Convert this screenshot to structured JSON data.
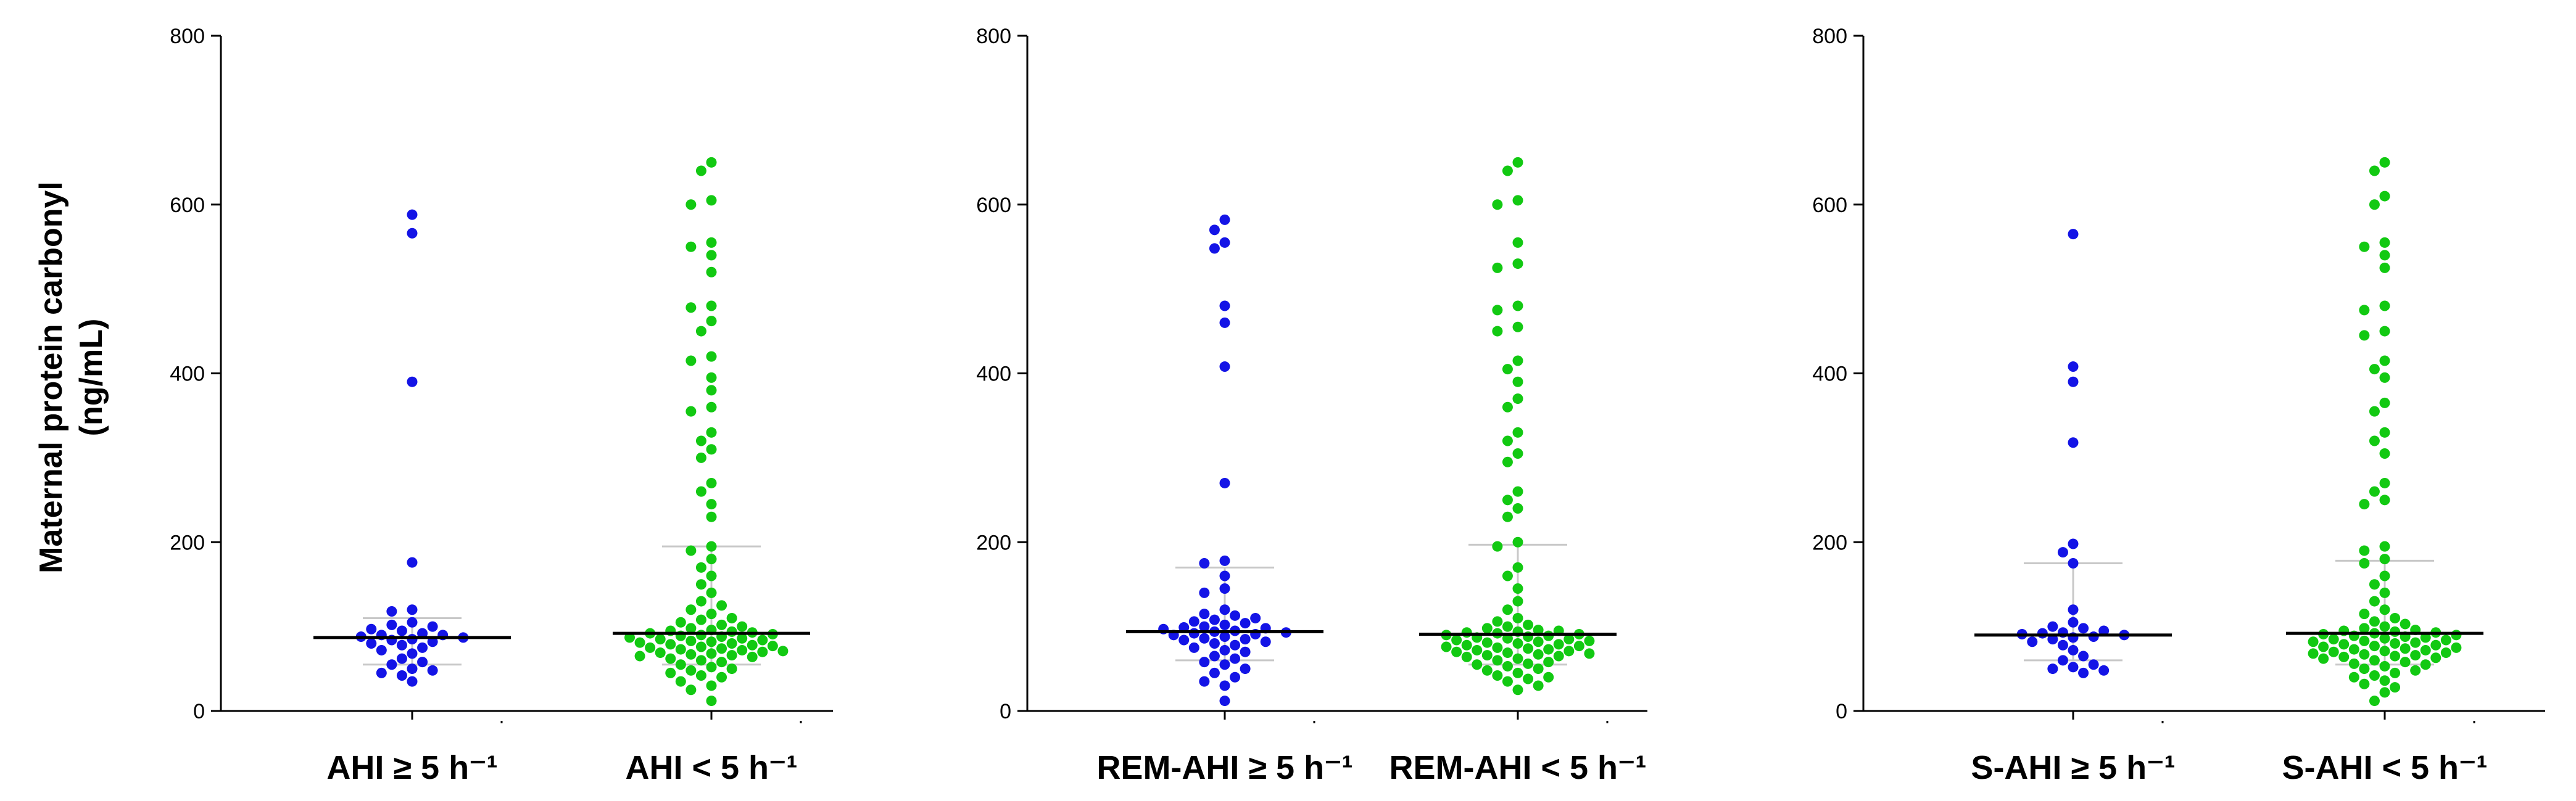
{
  "figure": {
    "ylabel_line1": "Maternal protein carbonyl",
    "ylabel_line2": "(ng/mL)"
  },
  "colors": {
    "group1": "#1414e6",
    "group2": "#12c912",
    "median": "#000000",
    "iqr": "#c8c8c8",
    "axis": "#000000"
  },
  "chart_data": [
    {
      "type": "scatter",
      "subtype": "dot-plot",
      "ylim": [
        0,
        800
      ],
      "yticks": [
        0,
        200,
        400,
        600,
        800
      ],
      "categories": [
        "AHI ≥ 5 h⁻¹",
        "AHI < 5 h⁻¹"
      ],
      "series": [
        {
          "category": "AHI ≥ 5 h⁻¹",
          "median": 87,
          "whisker": [
            55,
            110
          ],
          "values": [
            588,
            566,
            390,
            176,
            120,
            118,
            105,
            102,
            100,
            97,
            95,
            92,
            90,
            90,
            88,
            87,
            85,
            84,
            82,
            80,
            78,
            75,
            72,
            68,
            62,
            58,
            55,
            50,
            48,
            45,
            42,
            35
          ]
        },
        {
          "category": "AHI < 5 h⁻¹",
          "median": 92,
          "whisker": [
            55,
            195
          ],
          "values": [
            650,
            640,
            605,
            600,
            555,
            550,
            540,
            520,
            480,
            478,
            462,
            450,
            420,
            415,
            395,
            380,
            360,
            355,
            330,
            320,
            310,
            300,
            270,
            260,
            245,
            230,
            195,
            190,
            180,
            170,
            160,
            150,
            140,
            130,
            125,
            120,
            115,
            110,
            108,
            105,
            102,
            100,
            98,
            96,
            95,
            94,
            93,
            92,
            91,
            90,
            89,
            88,
            87,
            86,
            85,
            84,
            83,
            82,
            81,
            80,
            79,
            78,
            77,
            76,
            75,
            74,
            73,
            72,
            71,
            70,
            69,
            68,
            67,
            66,
            65,
            64,
            62,
            60,
            58,
            55,
            52,
            50,
            48,
            45,
            42,
            40,
            35,
            30,
            25,
            12
          ]
        }
      ]
    },
    {
      "type": "scatter",
      "subtype": "dot-plot",
      "ylim": [
        0,
        800
      ],
      "yticks": [
        0,
        200,
        400,
        600,
        800
      ],
      "categories": [
        "REM-AHI ≥ 5 h⁻¹",
        "REM-AHI < 5 h⁻¹"
      ],
      "series": [
        {
          "category": "REM-AHI ≥ 5 h⁻¹",
          "median": 94,
          "whisker": [
            60,
            170
          ],
          "values": [
            582,
            570,
            555,
            548,
            480,
            460,
            408,
            270,
            178,
            175,
            160,
            145,
            140,
            120,
            115,
            113,
            110,
            108,
            106,
            104,
            102,
            100,
            99,
            98,
            97,
            95,
            94,
            93,
            92,
            91,
            90,
            88,
            86,
            85,
            84,
            82,
            80,
            78,
            75,
            72,
            70,
            65,
            62,
            58,
            55,
            50,
            45,
            40,
            35,
            30,
            12
          ]
        },
        {
          "category": "REM-AHI < 5 h⁻¹",
          "median": 91,
          "whisker": [
            55,
            197
          ],
          "values": [
            650,
            640,
            605,
            600,
            555,
            530,
            525,
            480,
            475,
            455,
            450,
            415,
            405,
            390,
            370,
            360,
            330,
            320,
            305,
            295,
            260,
            250,
            240,
            230,
            200,
            195,
            170,
            160,
            145,
            130,
            120,
            110,
            106,
            102,
            100,
            98,
            96,
            95,
            94,
            93,
            92,
            91,
            90,
            89,
            88,
            87,
            86,
            85,
            84,
            83,
            82,
            81,
            80,
            79,
            78,
            77,
            76,
            75,
            74,
            73,
            72,
            71,
            70,
            69,
            68,
            67,
            66,
            65,
            64,
            62,
            60,
            58,
            56,
            55,
            53,
            50,
            48,
            45,
            42,
            40,
            38,
            35,
            30,
            25
          ]
        }
      ]
    },
    {
      "type": "scatter",
      "subtype": "dot-plot",
      "ylim": [
        0,
        800
      ],
      "yticks": [
        0,
        200,
        400,
        600,
        800
      ],
      "categories": [
        "S-AHI ≥ 5 h⁻¹",
        "S-AHI < 5 h⁻¹"
      ],
      "series": [
        {
          "category": "S-AHI ≥ 5 h⁻¹",
          "median": 90,
          "whisker": [
            60,
            175
          ],
          "values": [
            565,
            408,
            390,
            318,
            198,
            188,
            175,
            120,
            105,
            100,
            98,
            95,
            93,
            92,
            91,
            90,
            88,
            87,
            85,
            82,
            78,
            72,
            65,
            60,
            55,
            52,
            50,
            48,
            45
          ]
        },
        {
          "category": "S-AHI < 5 h⁻¹",
          "median": 92,
          "whisker": [
            55,
            178
          ],
          "values": [
            650,
            640,
            610,
            600,
            555,
            550,
            540,
            525,
            480,
            475,
            450,
            445,
            415,
            405,
            395,
            365,
            355,
            330,
            320,
            305,
            270,
            260,
            250,
            245,
            195,
            190,
            180,
            175,
            160,
            150,
            140,
            130,
            120,
            115,
            110,
            106,
            103,
            100,
            98,
            96,
            95,
            94,
            93,
            92,
            91,
            90,
            89,
            88,
            87,
            86,
            85,
            84,
            83,
            82,
            81,
            80,
            79,
            78,
            77,
            76,
            75,
            74,
            73,
            72,
            71,
            70,
            69,
            68,
            67,
            66,
            65,
            64,
            63,
            62,
            60,
            58,
            56,
            55,
            53,
            50,
            48,
            45,
            42,
            40,
            36,
            32,
            28,
            22,
            12
          ]
        }
      ]
    }
  ]
}
